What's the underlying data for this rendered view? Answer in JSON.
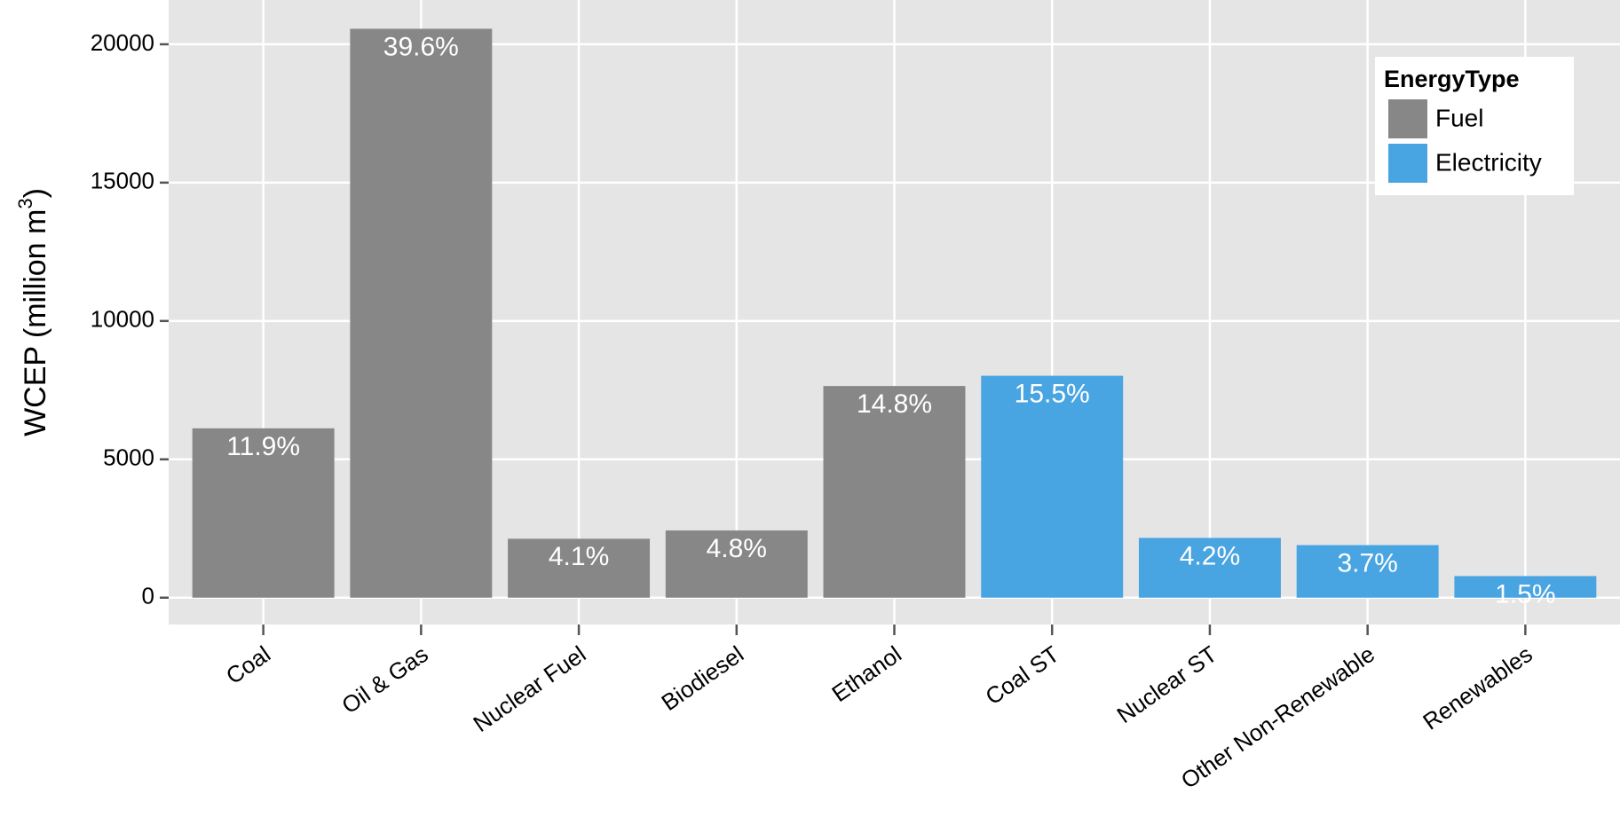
{
  "chart_data": {
    "type": "bar",
    "ylabel": "WCEP (million m",
    "ylabel_sup": "3",
    "ylabel_end": ")",
    "categories": [
      "Coal",
      "Oil & Gas",
      "Nuclear Fuel",
      "Biodiesel",
      "Ethanol",
      "Coal ST",
      "Nuclear ST",
      "Other Non-Renewable",
      "Renewables"
    ],
    "series": [
      {
        "name": "Fuel",
        "color": "#878787",
        "values": [
          6120,
          20560,
          2130,
          2430,
          7650,
          null,
          null,
          null,
          null
        ],
        "percent_labels": [
          "11.9%",
          "39.6%",
          "4.1%",
          "4.8%",
          "14.8%",
          null,
          null,
          null,
          null
        ]
      },
      {
        "name": "Electricity",
        "color": "#49a4e2",
        "values": [
          null,
          null,
          null,
          null,
          null,
          8020,
          2160,
          1900,
          780
        ],
        "percent_labels": [
          null,
          null,
          null,
          null,
          null,
          "15.5%",
          "4.2%",
          "3.7%",
          "1.5%"
        ]
      }
    ],
    "legend_title": "EnergyType",
    "legend": "top-right",
    "ylim": [
      -970,
      21600
    ],
    "yticks": [
      0,
      5000,
      10000,
      15000,
      20000
    ],
    "grid": true
  }
}
